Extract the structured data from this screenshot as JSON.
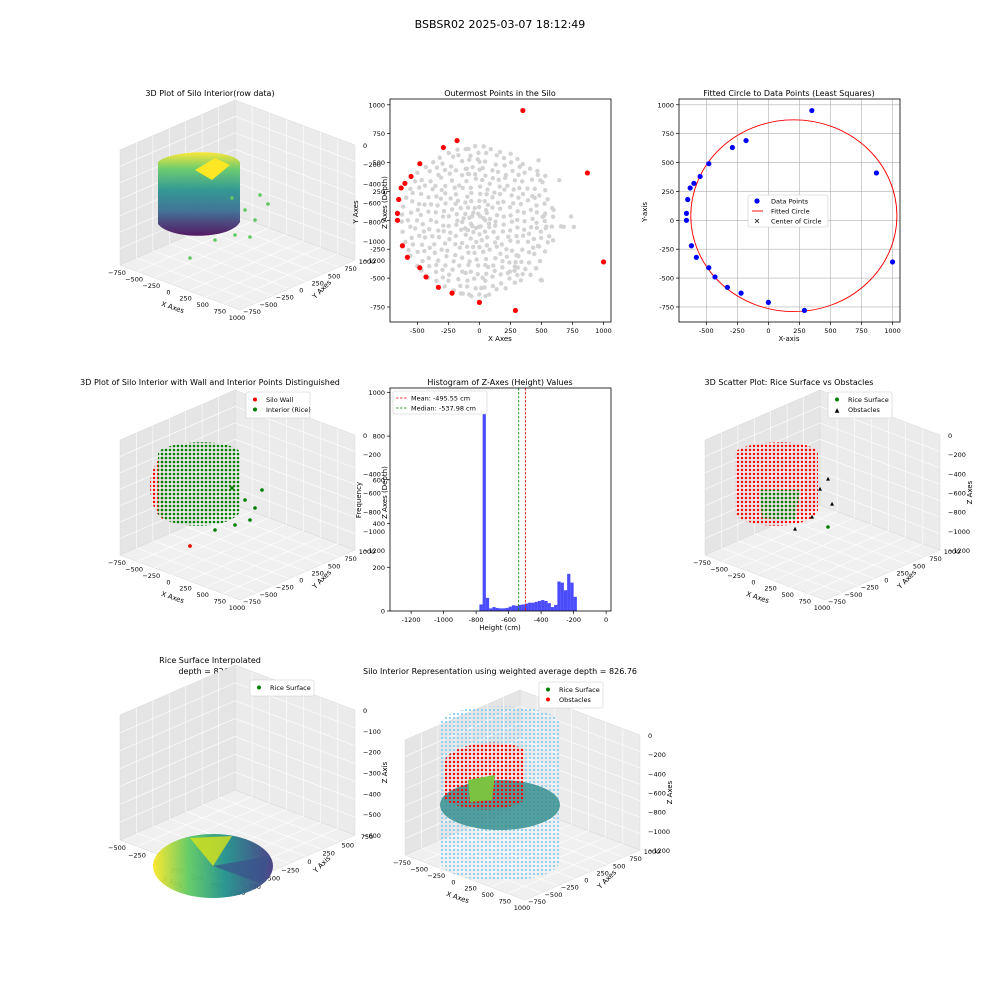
{
  "figure_title": "BSBSR02 2025-03-07 18:12:49",
  "chart_data": [
    {
      "id": "p1",
      "type": "scatter3d",
      "title": "3D Plot of Silo Interior(row data)",
      "xlabel": "X Axes",
      "ylabel": "Y Axes",
      "zlabel": "Z Axes (Depth)",
      "x_ticks": [
        "−750",
        "−500",
        "−250",
        "0",
        "250",
        "500",
        "750",
        "1000"
      ],
      "y_ticks": [
        "1000",
        "750",
        "500",
        "250",
        "0",
        "−250",
        "−500",
        "−750"
      ],
      "z_ticks": [
        "0",
        "−200",
        "−400",
        "−600",
        "−800",
        "−1000",
        "−1200"
      ],
      "colormap": "viridis"
    },
    {
      "id": "p2",
      "type": "scatter",
      "title": "Outermost Points in the Silo",
      "xlabel": "X Axes",
      "ylabel": "Y Axes",
      "xlim": [
        -720,
        1060
      ],
      "ylim": [
        -880,
        1050
      ],
      "x_ticks": [
        -500,
        -250,
        0,
        250,
        500,
        750,
        1000
      ],
      "y_ticks": [
        -750,
        -500,
        -250,
        0,
        250,
        500,
        750,
        1000
      ],
      "outermost_points": [
        [
          350,
          950
        ],
        [
          -180,
          690
        ],
        [
          -290,
          630
        ],
        [
          -480,
          490
        ],
        [
          -550,
          380
        ],
        [
          -600,
          320
        ],
        [
          -630,
          280
        ],
        [
          -650,
          180
        ],
        [
          -660,
          60
        ],
        [
          -660,
          0
        ],
        [
          -620,
          -220
        ],
        [
          -580,
          -320
        ],
        [
          -480,
          -410
        ],
        [
          -430,
          -490
        ],
        [
          -330,
          -580
        ],
        [
          -220,
          -630
        ],
        [
          0,
          -710
        ],
        [
          290,
          -780
        ],
        [
          870,
          410
        ],
        [
          1000,
          -360
        ]
      ],
      "colors": {
        "outermost": "#ff0000",
        "interior": "#d3d3d3"
      }
    },
    {
      "id": "p3",
      "type": "scatter",
      "title": "Fitted Circle to Data Points (Least Squares)",
      "xlabel": "X-axis",
      "ylabel": "Y-axis",
      "xlim": [
        -720,
        1060
      ],
      "ylim": [
        -880,
        1050
      ],
      "x_ticks": [
        -500,
        -250,
        0,
        250,
        500,
        750,
        1000
      ],
      "y_ticks": [
        -750,
        -500,
        -250,
        0,
        250,
        500,
        750,
        1000
      ],
      "grid": true,
      "legend_position": "center",
      "legend": [
        "Data Points",
        "Fitted Circle",
        "Center of Circle"
      ],
      "data_points": [
        [
          350,
          950
        ],
        [
          -180,
          690
        ],
        [
          -290,
          630
        ],
        [
          -480,
          490
        ],
        [
          -550,
          380
        ],
        [
          -600,
          320
        ],
        [
          -630,
          280
        ],
        [
          -650,
          180
        ],
        [
          -660,
          60
        ],
        [
          -660,
          0
        ],
        [
          -620,
          -220
        ],
        [
          -580,
          -320
        ],
        [
          -480,
          -410
        ],
        [
          -430,
          -490
        ],
        [
          -330,
          -580
        ],
        [
          -220,
          -630
        ],
        [
          0,
          -710
        ],
        [
          290,
          -780
        ],
        [
          870,
          410
        ],
        [
          1000,
          -360
        ]
      ],
      "circle": {
        "cx": 205,
        "cy": 40,
        "r": 830
      },
      "colors": {
        "points": "#0000ff",
        "circle": "#ff0000",
        "center": "#008000"
      }
    },
    {
      "id": "p4",
      "type": "scatter3d",
      "title": "3D Plot of Silo Interior with Wall and Interior Points Distinguished",
      "xlabel": "X Axes",
      "ylabel": "Y Axes",
      "zlabel": "Z Axes (Depth)",
      "x_ticks": [
        "−750",
        "−500",
        "−250",
        "0",
        "250",
        "500",
        "750",
        "1000"
      ],
      "y_ticks": [
        "1000",
        "750",
        "500",
        "250",
        "0",
        "−250",
        "−500",
        "−750"
      ],
      "z_ticks": [
        "0",
        "−200",
        "−400",
        "−600",
        "−800",
        "−1000",
        "−1200"
      ],
      "legend": [
        "Silo Wall",
        "Interior (Rice)"
      ],
      "legend_position": "upper right",
      "colors": {
        "wall": "#ff0000",
        "interior": "#008000"
      }
    },
    {
      "id": "p5",
      "type": "histogram",
      "title": "Histogram of Z-Axes (Height) Values",
      "xlabel": "Height (cm)",
      "ylabel": "Frequency",
      "xlim": [
        -1330,
        30
      ],
      "ylim": [
        0,
        1020
      ],
      "x_ticks": [
        -1200,
        -1000,
        -800,
        -600,
        -400,
        -200,
        0
      ],
      "y_ticks": [
        0,
        200,
        400,
        600,
        800,
        1000
      ],
      "bin_edges_start": -1240,
      "bin_width": 20,
      "counts": [
        0,
        0,
        0,
        0,
        0,
        0,
        0,
        0,
        0,
        0,
        0,
        0,
        0,
        0,
        0,
        0,
        0,
        0,
        0,
        0,
        0,
        1,
        2,
        30,
        1000,
        60,
        12,
        18,
        14,
        12,
        12,
        14,
        20,
        26,
        24,
        28,
        30,
        34,
        38,
        38,
        42,
        46,
        50,
        46,
        36,
        18,
        28,
        135,
        130,
        95,
        170,
        130,
        65
      ],
      "mean": -495.55,
      "median": -537.98,
      "legend": [
        "Mean: -495.55 cm",
        "Median: -537.98 cm"
      ],
      "legend_position": "upper left",
      "colors": {
        "bars": "#0000ff",
        "mean": "#ff0000",
        "median": "#008000"
      }
    },
    {
      "id": "p6",
      "type": "scatter3d",
      "title": "3D Scatter Plot: Rice Surface vs Obstacles",
      "xlabel": "X Axes",
      "ylabel": "Y Axes",
      "zlabel": "Z Axes",
      "x_ticks": [
        "−750",
        "−500",
        "−250",
        "0",
        "250",
        "500",
        "750",
        "1000"
      ],
      "y_ticks": [
        "1000",
        "750",
        "500",
        "250",
        "0",
        "−250",
        "−500",
        "−750"
      ],
      "z_ticks": [
        "0",
        "−200",
        "−400",
        "−600",
        "−800",
        "−1000",
        "−1200"
      ],
      "legend": [
        "Rice Surface",
        "Obstacles"
      ],
      "legend_position": "upper right",
      "colors": {
        "rice": "#008000",
        "obstacles": "#ff0000"
      }
    },
    {
      "id": "p7",
      "type": "surface3d",
      "title": "Rice Surface Interpolated",
      "subtitle": "depth = 826.76",
      "xlabel": "X Axis",
      "ylabel": "Y Axis",
      "zlabel": "Z Axis",
      "x_ticks": [
        "−500",
        "−250",
        "0",
        "250",
        "500",
        "750",
        "1000"
      ],
      "y_ticks": [
        "750",
        "500",
        "250",
        "0",
        "−250",
        "−500",
        "−750"
      ],
      "z_ticks": [
        "0",
        "−100",
        "−200",
        "−300",
        "−400",
        "−500",
        "−600"
      ],
      "legend": [
        "Rice Surface"
      ],
      "legend_position": "upper right",
      "colors": {
        "rice": "#008000"
      }
    },
    {
      "id": "p8",
      "type": "surface3d",
      "title": "Silo Interior Representation using weighted average depth = 826.76",
      "xlabel": "X Axes",
      "ylabel": "Y Axes",
      "zlabel": "Z Axes",
      "x_ticks": [
        "−750",
        "−500",
        "−250",
        "0",
        "250",
        "500",
        "750",
        "1000"
      ],
      "y_ticks": [
        "1000",
        "750",
        "500",
        "250",
        "0",
        "−250",
        "−500",
        "−750"
      ],
      "z_ticks": [
        "0",
        "−200",
        "−400",
        "−600",
        "−800",
        "−1000",
        "−1200"
      ],
      "legend": [
        "Rice Surface",
        "Obstacles"
      ],
      "legend_position": "upper center",
      "colors": {
        "rice": "#008000",
        "obstacles": "#ff0000",
        "cylinder": "#87ceeb",
        "surface": "#2e8b8b"
      }
    }
  ]
}
